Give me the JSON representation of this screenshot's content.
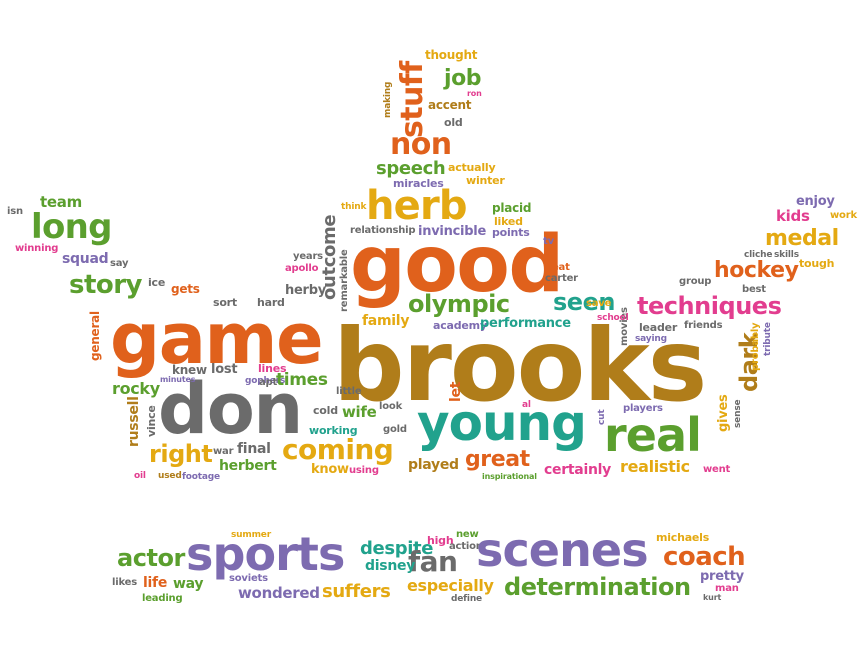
{
  "palette": {
    "orange": "#e0611c",
    "purple": "#7d6bb0",
    "green": "#5b9f2e",
    "gold": "#b07d1a",
    "teal": "#21a28d",
    "pink": "#e23d8f",
    "gray": "#6b6b6b",
    "yellow": "#e4a912"
  },
  "words": {
    "brooks": "brooks",
    "game": "game",
    "good": "good",
    "don": "don",
    "young": "young",
    "real": "real",
    "herb": "herb",
    "sports": "sports",
    "scenes": "scenes",
    "non": "non",
    "stuff": "stuff",
    "job": "job",
    "coming": "coming",
    "olympic": "olympic",
    "techniques": "techniques",
    "seen": "seen",
    "long": "long",
    "story": "story",
    "medal": "medal",
    "hockey": "hockey",
    "dark": "dark",
    "right": "right",
    "great": "great",
    "actor": "actor",
    "fan": "fan",
    "coach": "coach",
    "determination": "determination",
    "speech": "speech",
    "despite": "despite",
    "especially": "especially",
    "disney": "disney",
    "suffers": "suffers",
    "wondered": "wondered",
    "outcome": "outcome",
    "invincible": "invincible",
    "performance": "performance",
    "family": "family",
    "times": "times",
    "wife": "wife",
    "herbert": "herbert",
    "realistic": "realistic",
    "certainly": "certainly",
    "played": "played",
    "rocky": "rocky",
    "russell": "russell",
    "squad": "squad",
    "team": "team",
    "kids": "kids",
    "enjoy": "enjoy",
    "thought": "thought",
    "accent": "accent",
    "old": "old",
    "actually": "actually",
    "winter": "winter",
    "miracles": "miracles",
    "placid": "placid",
    "liked": "liked",
    "points": "points",
    "relationship": "relationship",
    "think": "think",
    "remarkable": "remarkable",
    "years": "years",
    "apollo": "apollo",
    "herby": "herby",
    "hard": "hard",
    "sort": "sort",
    "gets": "gets",
    "ice": "ice",
    "say": "say",
    "winning": "winning",
    "isn": "isn",
    "general": "general",
    "knew": "knew",
    "lost": "lost",
    "lines": "lines",
    "minutes": "minutes",
    "little": "little",
    "gophers": "gophers",
    "apt": "apt",
    "cold": "cold",
    "working": "working",
    "look": "look",
    "gold": "gold",
    "final": "final",
    "war": "war",
    "vince": "vince",
    "know": "know",
    "using": "using",
    "used": "used",
    "footage": "footage",
    "oil": "oil",
    "let": "let",
    "al": "al",
    "academy": "academy",
    "inspirational": "inspirational",
    "tv": "tv",
    "beat": "beat",
    "carter": "carter",
    "save": "save",
    "school": "school",
    "movies": "movies",
    "saying": "saying",
    "leader": "leader",
    "friends": "friends",
    "group": "group",
    "best": "best",
    "probably": "probably",
    "tribute": "tribute",
    "cliche": "cliche",
    "skills": "skills",
    "tough": "tough",
    "work": "work",
    "players": "players",
    "gives": "gives",
    "sense": "sense",
    "went": "went",
    "cut": "cut",
    "making": "making",
    "ron": "ron",
    "summer": "summer",
    "high": "high",
    "new": "new",
    "action": "action",
    "life": "life",
    "way": "way",
    "likes": "likes",
    "leading": "leading",
    "soviets": "soviets",
    "define": "define",
    "michaels": "michaels",
    "pretty": "pretty",
    "man": "man",
    "kurt": "kurt"
  }
}
